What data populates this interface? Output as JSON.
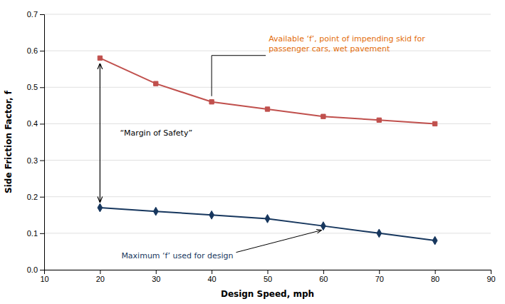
{
  "chart_data": {
    "type": "line",
    "x": [
      20,
      30,
      40,
      50,
      60,
      70,
      80
    ],
    "series": [
      {
        "color": "#C0504D",
        "marker": "square",
        "values": [
          0.58,
          0.51,
          0.46,
          0.44,
          0.42,
          0.41,
          0.4
        ]
      },
      {
        "color": "#17375E",
        "marker": "diamond",
        "values": [
          0.17,
          0.16,
          0.15,
          0.14,
          0.12,
          0.1,
          0.08
        ]
      }
    ],
    "xlim": [
      10,
      90
    ],
    "ylim": [
      0,
      0.7
    ],
    "xticks": [
      10,
      20,
      30,
      40,
      50,
      60,
      70,
      80,
      90
    ],
    "yticks": [
      {
        "value": 0,
        "label": "0.0"
      },
      0.1,
      0.2,
      0.3,
      0.4,
      0.5,
      0.6,
      0.7
    ],
    "xlabel": "Design Speed, mph",
    "ylabel": "Side Friction Factor, f",
    "grid": "y",
    "annotations": [
      {
        "text": "Available ‘f’, point of impending skid for\npassenger cars, wet pavement",
        "color": "#E36C09"
      },
      {
        "text": "Maximum ‘f’ used for design",
        "color": "#17375E"
      },
      {
        "text": "“Margin of Safety”"
      }
    ]
  }
}
